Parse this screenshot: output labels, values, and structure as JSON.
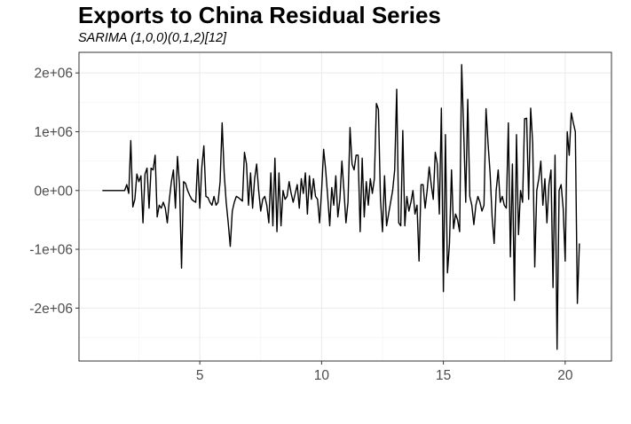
{
  "chart_data": {
    "type": "line",
    "title": "Exports to China Residual Series",
    "subtitle": "SARIMA (1,0,0)(0,1,2)[12]",
    "xlabel": "",
    "ylabel": "",
    "xlim": [
      0.04,
      21.9
    ],
    "ylim": [
      -2900000,
      2350000
    ],
    "grid": true,
    "x_ticks": [
      5,
      10,
      15,
      20
    ],
    "x_tick_labels": [
      "5",
      "10",
      "15",
      "20"
    ],
    "y_ticks": [
      -2000000,
      -1000000,
      0,
      1000000,
      2000000
    ],
    "y_tick_labels": [
      "-2e+06",
      "-1e+06",
      "0e+00",
      "1e+06",
      "2e+06"
    ],
    "line_color": "#000000",
    "series": [
      {
        "x_start": 1,
        "x_step": 0.0833333,
        "values": [
          0,
          0,
          0,
          0,
          0,
          0,
          0,
          0,
          0,
          0,
          0,
          0,
          100000,
          -50000,
          850000,
          -280000,
          -150000,
          280000,
          150000,
          250000,
          -550000,
          280000,
          380000,
          -300000,
          380000,
          350000,
          600000,
          -450000,
          -250000,
          -300000,
          -200000,
          -300000,
          -550000,
          -150000,
          150000,
          350000,
          -300000,
          580000,
          100000,
          -1320000,
          150000,
          120000,
          0,
          -80000,
          -150000,
          -180000,
          -200000,
          530000,
          -300000,
          400000,
          760000,
          -100000,
          -120000,
          -200000,
          -250000,
          -100000,
          -250000,
          -200000,
          150000,
          1150000,
          300000,
          -200000,
          -550000,
          -950000,
          -350000,
          -200000,
          -100000,
          -120000,
          -150000,
          -180000,
          650000,
          450000,
          -250000,
          300000,
          -300000,
          200000,
          450000,
          0,
          -350000,
          -150000,
          -100000,
          -250000,
          -550000,
          300000,
          -600000,
          550000,
          -700000,
          300000,
          -600000,
          0,
          -150000,
          -100000,
          150000,
          -50000,
          -200000,
          -50000,
          100000,
          -300000,
          200000,
          -50000,
          300000,
          -400000,
          250000,
          -150000,
          200000,
          -100000,
          -150000,
          -550000,
          0,
          700000,
          350000,
          -100000,
          -600000,
          50000,
          -250000,
          250000,
          -450000,
          -150000,
          500000,
          0,
          -550000,
          -200000,
          1070000,
          450000,
          350000,
          600000,
          600000,
          -700000,
          550000,
          -450000,
          150000,
          -250000,
          200000,
          -50000,
          200000,
          1480000,
          1380000,
          -150000,
          -700000,
          250000,
          -600000,
          -400000,
          -200000,
          0,
          350000,
          1720000,
          -550000,
          -600000,
          1020000,
          -600000,
          -100000,
          -350000,
          -200000,
          0,
          -400000,
          -250000,
          -1200000,
          100000,
          100000,
          -300000,
          0,
          400000,
          100000,
          -150000,
          650000,
          450000,
          -400000,
          1400000,
          -1720000,
          950000,
          -1400000,
          -900000,
          350000,
          -650000,
          -400000,
          -500000,
          -700000,
          2140000,
          1000000,
          -200000,
          1550000,
          -100000,
          -250000,
          -580000,
          -250000,
          -100000,
          -200000,
          -350000,
          -250000,
          1390000,
          800000,
          300000,
          -450000,
          -900000,
          0,
          350000,
          -200000,
          -100000,
          -250000,
          -300000,
          1150000,
          -1130000,
          450000,
          -1870000,
          950000,
          -750000,
          0,
          -200000,
          1220000,
          1230000,
          -150000,
          1400000,
          800000,
          -1300000,
          0,
          200000,
          500000,
          -250000,
          200000,
          -550000,
          100000,
          350000,
          -1650000,
          600000,
          -2700000,
          0,
          100000,
          -300000,
          -1200000,
          1000000,
          600000,
          1320000,
          1150000,
          1000000,
          -1920000,
          -900000
        ]
      }
    ]
  }
}
